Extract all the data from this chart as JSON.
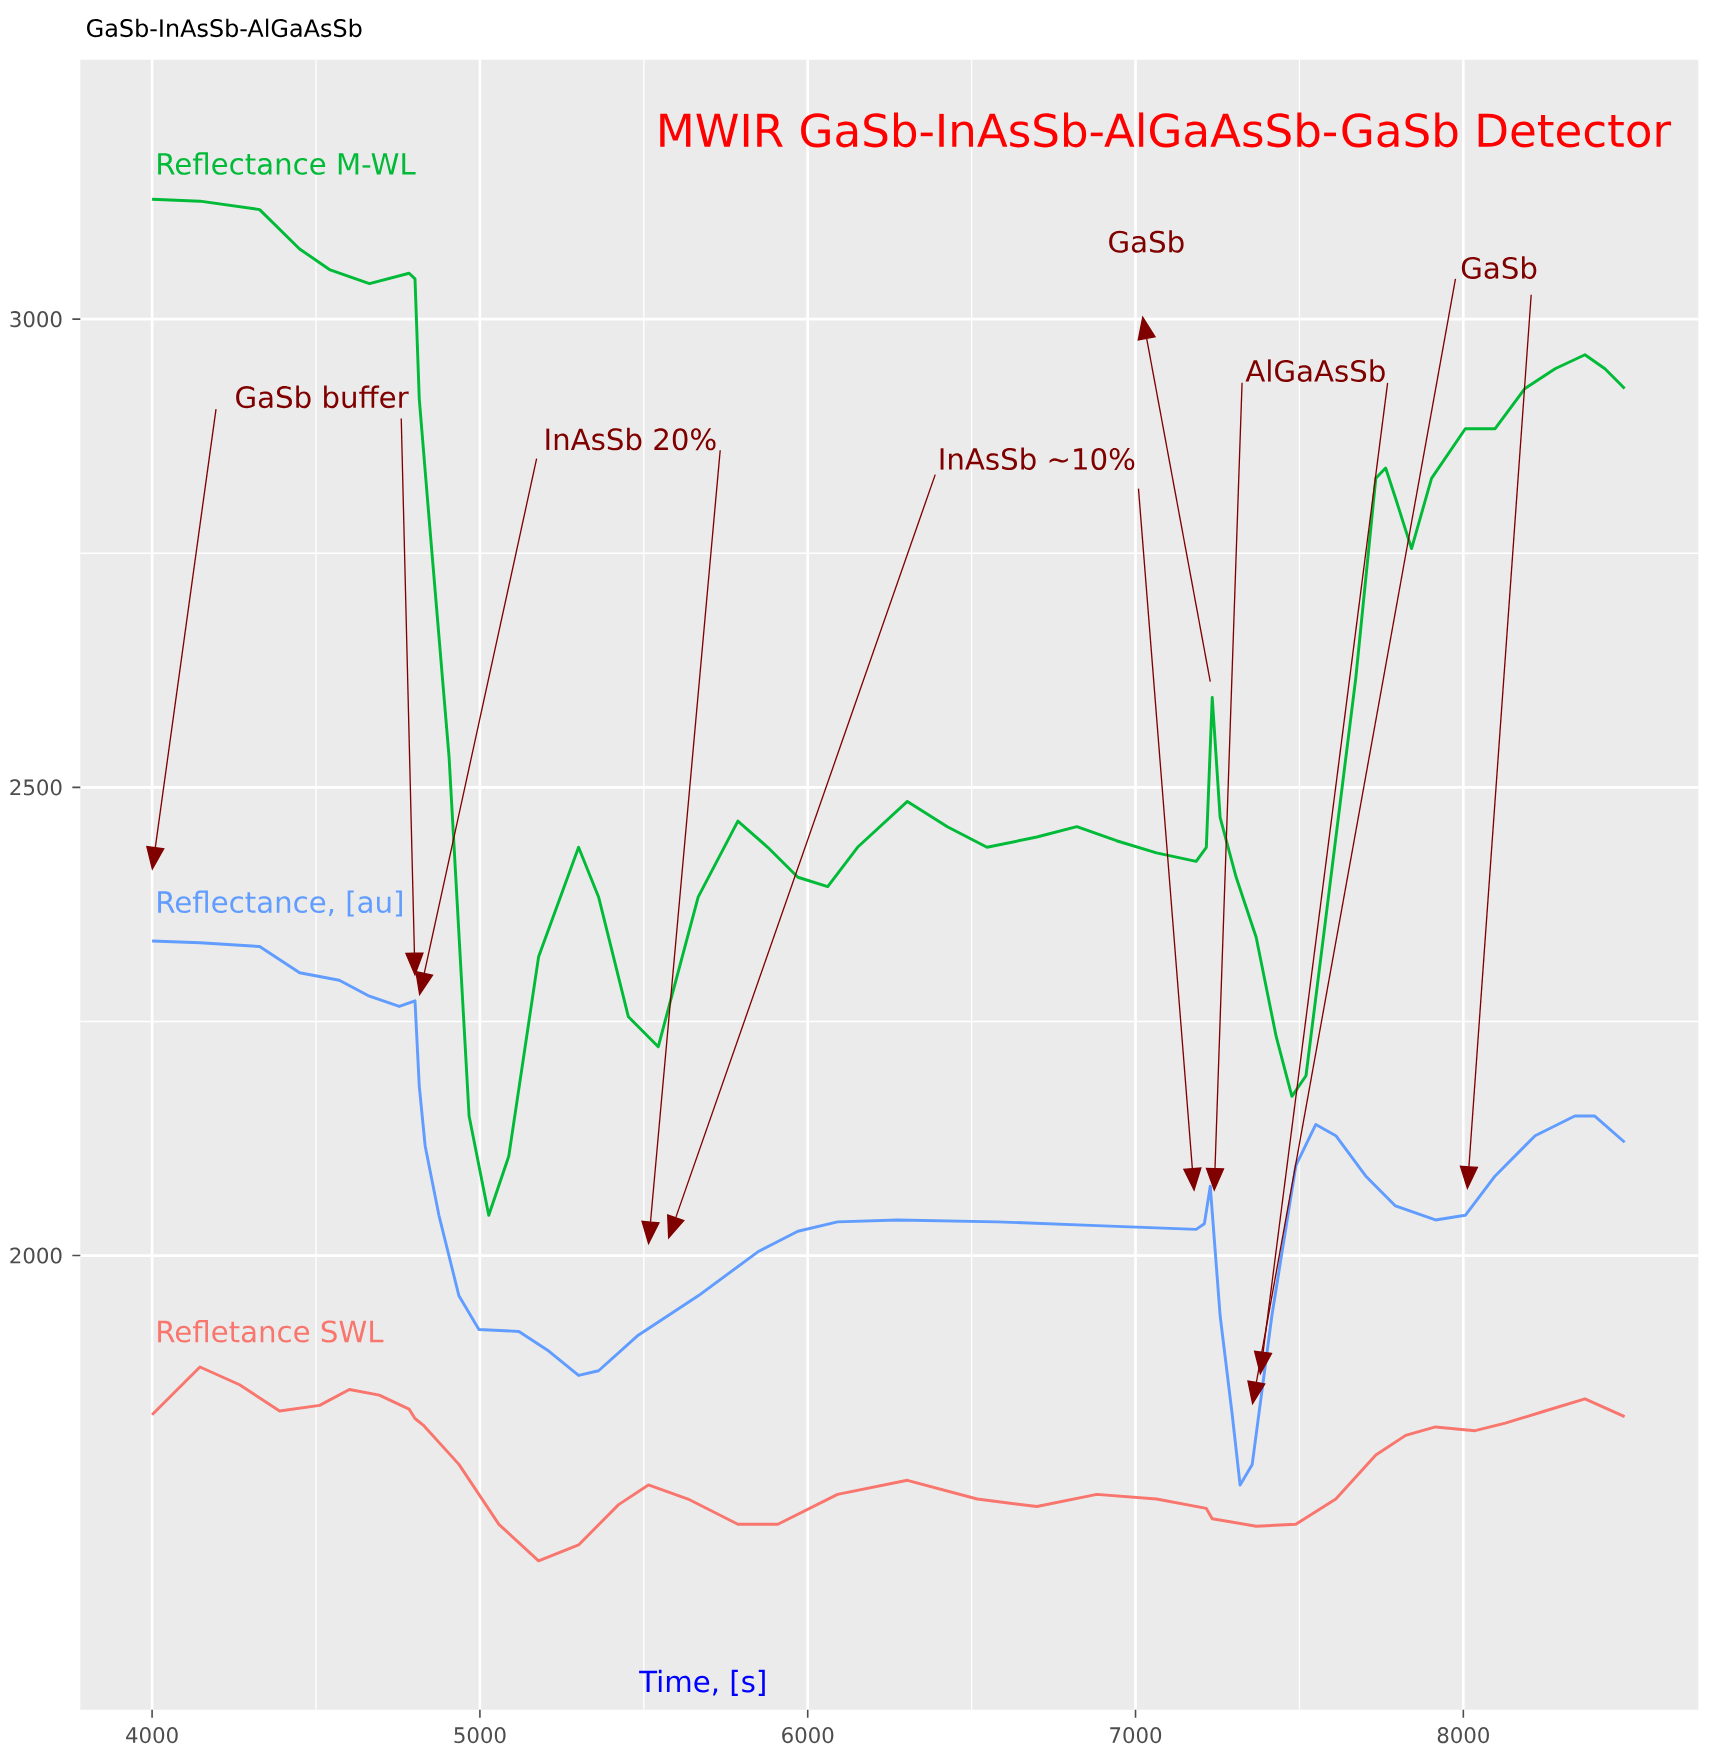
{
  "chart_data": {
    "type": "line",
    "title": "GaSb-InAsSb-AlGaAsSb",
    "xlabel": "Time, [s]",
    "xlim": [
      3781,
      8717
    ],
    "ylim": [
      1515,
      3277
    ],
    "xticks": [
      4000,
      5000,
      6000,
      7000,
      8000
    ],
    "yticks": [
      2000,
      2500,
      3000
    ],
    "grid": true,
    "marker": "none",
    "line_style": "solid",
    "series": [
      {
        "name": "Reflectance M-WL",
        "color": "#00ba38",
        "x": [
          4000,
          4146,
          4328,
          4450,
          4541,
          4663,
          4784,
          4802,
          4815,
          4845,
          4906,
          4967,
          5027,
          5088,
          5179,
          5301,
          5362,
          5453,
          5544,
          5666,
          5787,
          5878,
          5970,
          6061,
          6152,
          6304,
          6426,
          6547,
          6699,
          6821,
          6942,
          7064,
          7185,
          7216,
          7234,
          7258,
          7307,
          7368,
          7429,
          7477,
          7520,
          7581,
          7672,
          7733,
          7763,
          7793,
          7842,
          7903,
          8006,
          8097,
          8188,
          8280,
          8371,
          8432,
          8492
        ],
        "values": [
          3128,
          3126,
          3117,
          3075,
          3053,
          3038,
          3049,
          3043,
          2915,
          2787,
          2532,
          2149,
          2043,
          2106,
          2319,
          2436,
          2383,
          2255,
          2223,
          2383,
          2464,
          2436,
          2404,
          2394,
          2436,
          2485,
          2458,
          2436,
          2447,
          2458,
          2443,
          2430,
          2421,
          2436,
          2596,
          2468,
          2404,
          2340,
          2234,
          2170,
          2192,
          2362,
          2617,
          2830,
          2841,
          2809,
          2755,
          2830,
          2883,
          2883,
          2926,
          2947,
          2962,
          2947,
          2926
        ]
      },
      {
        "name": "Reflectance, [au]",
        "color": "#619cff",
        "x": [
          4000,
          4146,
          4328,
          4450,
          4571,
          4663,
          4754,
          4802,
          4815,
          4833,
          4875,
          4936,
          4997,
          5119,
          5210,
          5301,
          5362,
          5483,
          5666,
          5848,
          5970,
          6091,
          6274,
          6578,
          6882,
          7185,
          7210,
          7228,
          7258,
          7295,
          7319,
          7356,
          7416,
          7489,
          7550,
          7611,
          7702,
          7793,
          7915,
          8006,
          8097,
          8219,
          8340,
          8401,
          8492
        ],
        "values": [
          2336,
          2334,
          2330,
          2302,
          2294,
          2277,
          2266,
          2272,
          2181,
          2117,
          2043,
          1957,
          1921,
          1919,
          1898,
          1872,
          1877,
          1915,
          1957,
          2004,
          2026,
          2036,
          2038,
          2036,
          2032,
          2028,
          2034,
          2074,
          1936,
          1830,
          1755,
          1777,
          1936,
          2096,
          2140,
          2128,
          2085,
          2053,
          2038,
          2043,
          2085,
          2128,
          2149,
          2149,
          2121
        ]
      },
      {
        "name": "Refletance SWL",
        "color": "#f8766d",
        "x": [
          4000,
          4146,
          4267,
          4389,
          4511,
          4602,
          4693,
          4784,
          4802,
          4827,
          4936,
          5058,
          5179,
          5301,
          5423,
          5514,
          5635,
          5787,
          5909,
          6091,
          6304,
          6517,
          6699,
          6882,
          7064,
          7216,
          7234,
          7368,
          7489,
          7611,
          7733,
          7824,
          7915,
          8036,
          8128,
          8249,
          8371,
          8492
        ],
        "values": [
          1830,
          1881,
          1862,
          1834,
          1840,
          1857,
          1851,
          1836,
          1826,
          1819,
          1777,
          1713,
          1674,
          1691,
          1734,
          1755,
          1740,
          1713,
          1713,
          1745,
          1760,
          1740,
          1732,
          1745,
          1740,
          1730,
          1719,
          1711,
          1713,
          1740,
          1787,
          1808,
          1817,
          1813,
          1821,
          1834,
          1847,
          1828
        ]
      }
    ],
    "annotations": [
      "MWIR GaSb-InAsSb-AlGaAsSb-GaSb Detector",
      "GaSb buffer",
      "InAsSb 20%",
      "InAsSb ~10%",
      "GaSb",
      "AlGaAsSb",
      "GaSb"
    ]
  }
}
